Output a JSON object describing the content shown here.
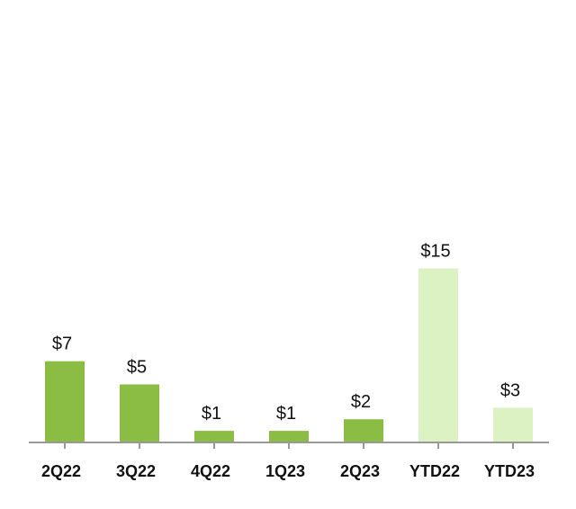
{
  "chart_data": {
    "type": "bar",
    "categories": [
      "2Q22",
      "3Q22",
      "4Q22",
      "1Q23",
      "2Q23",
      "YTD22",
      "YTD23"
    ],
    "values": [
      7,
      5,
      1,
      1,
      2,
      15,
      3
    ],
    "data_labels": [
      "$7",
      "$5",
      "$1",
      "$1",
      "$2",
      "$15",
      "$3"
    ],
    "title": "",
    "xlabel": "",
    "ylabel": "",
    "ylim": [
      0,
      31
    ],
    "grid": false,
    "colors": [
      "#8bbd45",
      "#8bbd45",
      "#8bbd45",
      "#8bbd45",
      "#8bbd45",
      "#ddf2c2",
      "#ddf2c2"
    ],
    "axis_color": "#999999"
  }
}
